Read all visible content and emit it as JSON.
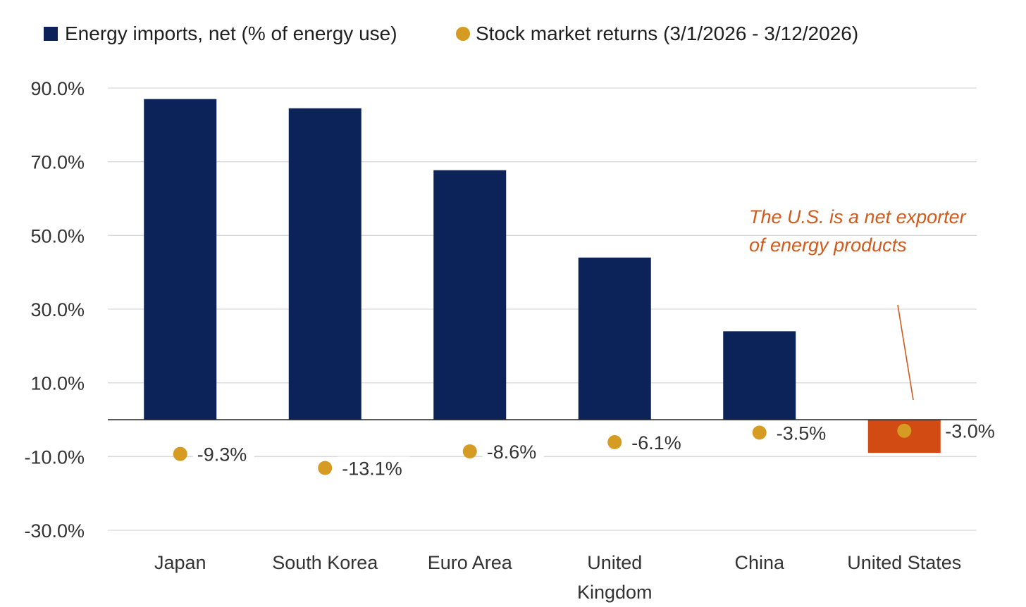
{
  "chart_data": {
    "type": "bar",
    "title": "",
    "xlabel": "",
    "ylabel": "",
    "categories": [
      "Japan",
      "South Korea",
      "Euro Area",
      "United Kingdom",
      "China",
      "United States"
    ],
    "category_lines": [
      [
        "Japan"
      ],
      [
        "South Korea"
      ],
      [
        "Euro Area"
      ],
      [
        "United",
        "Kingdom"
      ],
      [
        "China"
      ],
      [
        "United States"
      ]
    ],
    "series": [
      {
        "name": "Energy imports, net (% of energy use)",
        "kind": "bar",
        "color": "#0b2359",
        "values": [
          87.0,
          84.5,
          67.7,
          44.0,
          24.0,
          -9.0
        ],
        "highlight": {
          "index": 5,
          "color": "#d14b12"
        }
      },
      {
        "name": "Stock market returns (3/1/2026 - 3/12/2026)",
        "kind": "dot",
        "color": "#d59b22",
        "values": [
          -9.3,
          -13.1,
          -8.6,
          -6.1,
          -3.5,
          -3.0
        ],
        "labels": [
          "-9.3%",
          "-13.1%",
          "-8.6%",
          "-6.1%",
          "-3.5%",
          "-3.0%"
        ]
      }
    ],
    "ylim": [
      -30,
      90
    ],
    "yticks": [
      90,
      70,
      50,
      30,
      10,
      -10,
      -30
    ],
    "ytick_labels": [
      "90.0%",
      "70.0%",
      "50.0%",
      "30.0%",
      "10.0%",
      "-10.0%",
      "-30.0%"
    ],
    "grid": true,
    "legend_position": "top-left",
    "annotation": {
      "lines": [
        "The U.S. is a net exporter",
        "of energy products"
      ],
      "color": "#d15a1c",
      "target_category": "United States"
    }
  }
}
